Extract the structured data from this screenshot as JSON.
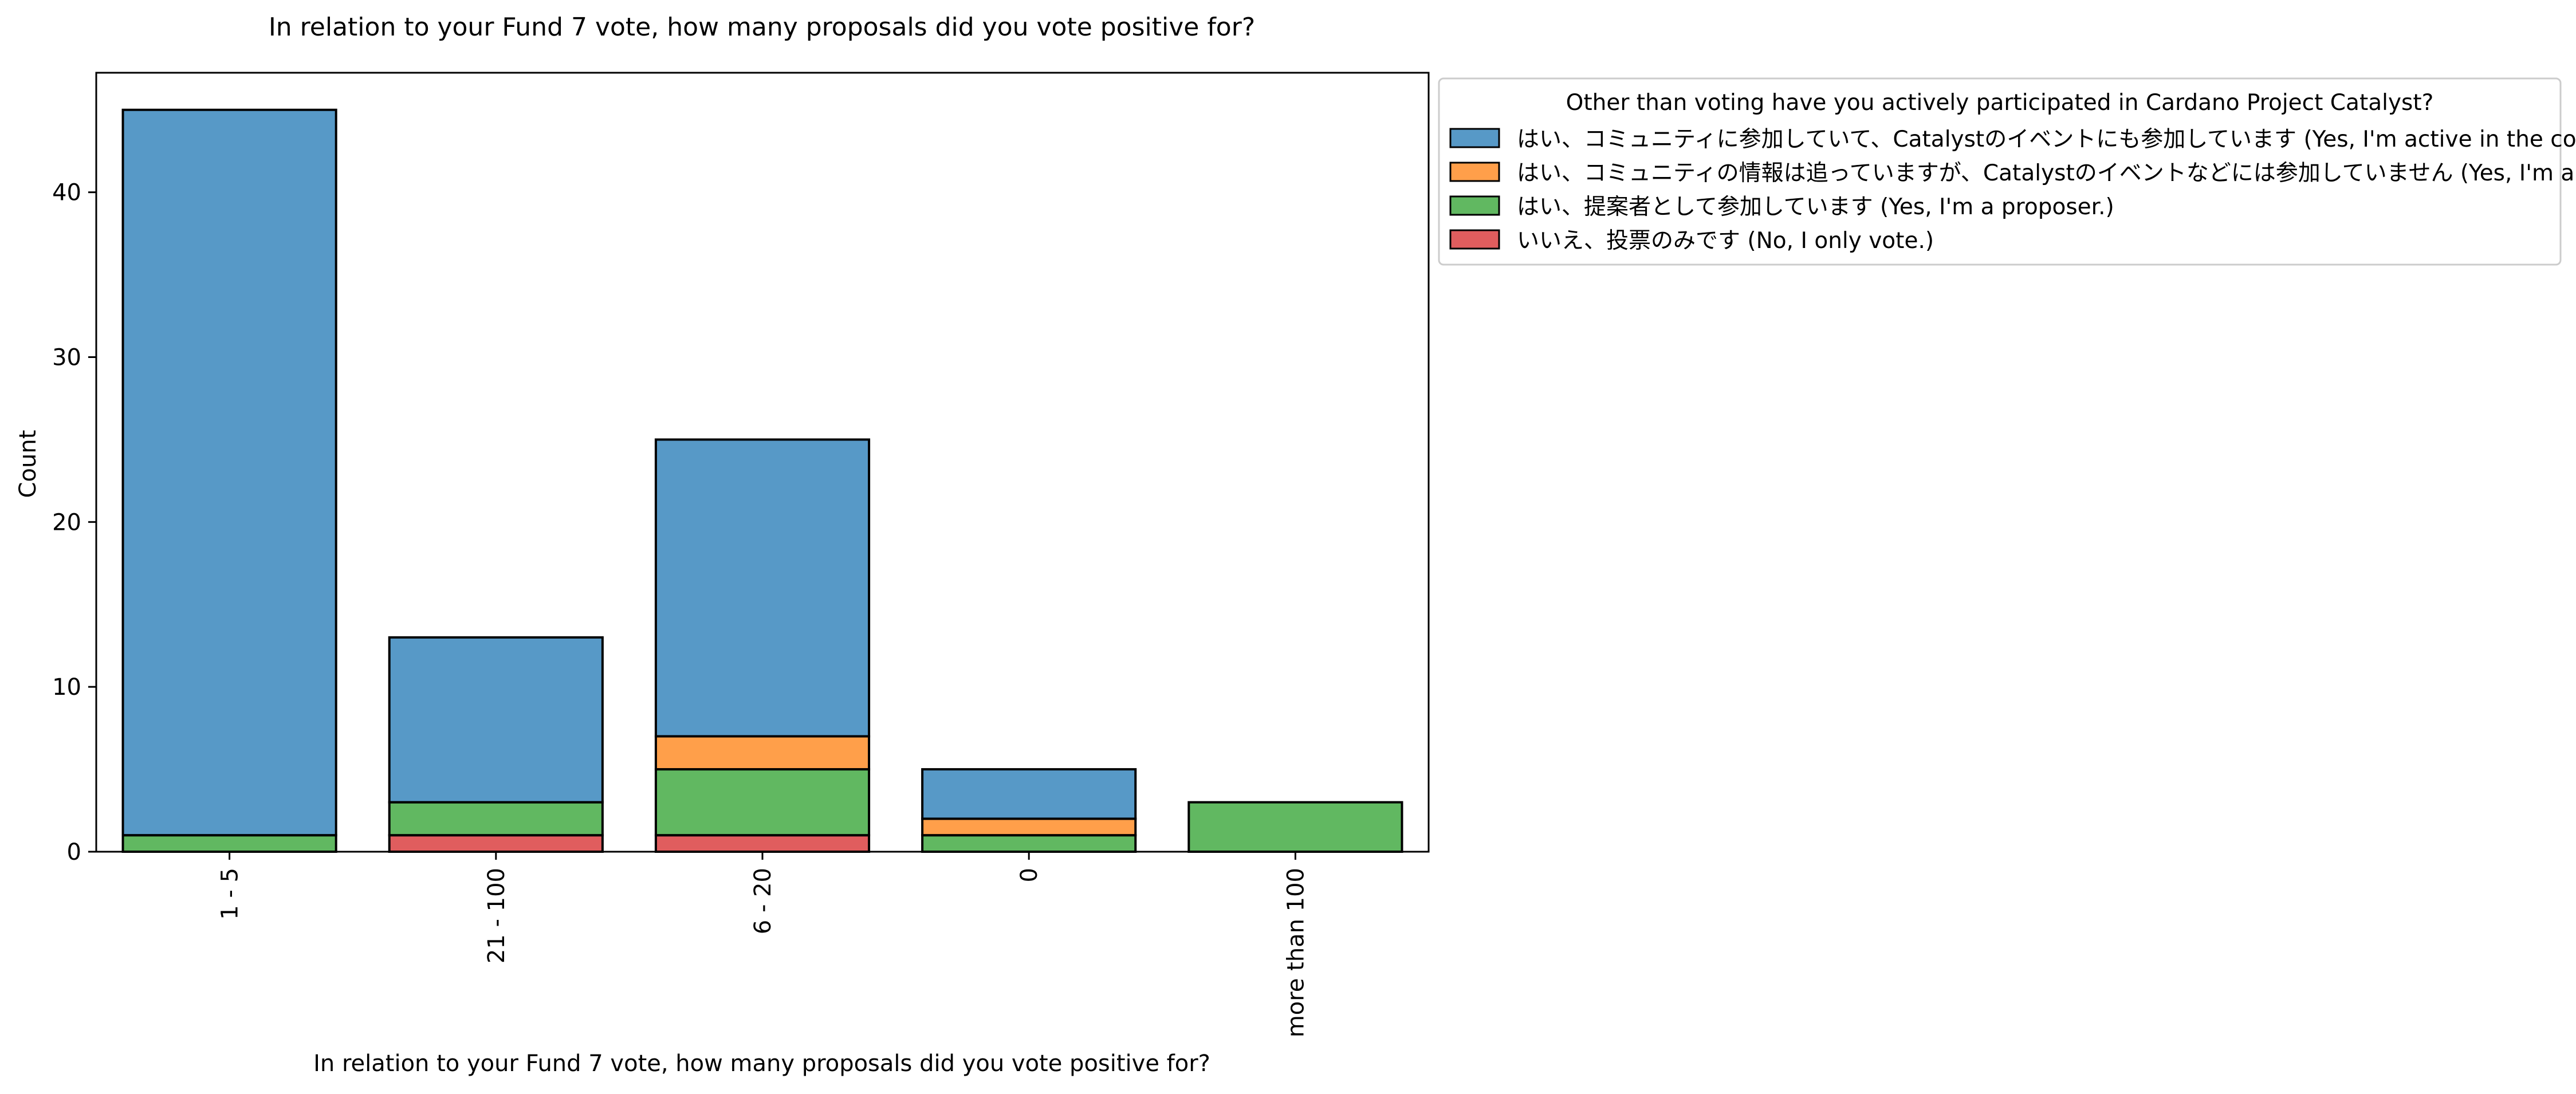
{
  "chart_data": {
    "type": "bar",
    "stacked": true,
    "title": "In relation to your Fund 7 vote, how many proposals did you vote positive for?",
    "xlabel": "In relation to your Fund 7 vote, how many proposals did you vote positive for?",
    "ylabel": "Count",
    "categories": [
      "1 - 5",
      "21 - 100",
      "6 - 20",
      "0",
      "more than 100"
    ],
    "yticks": [
      0,
      10,
      20,
      30,
      40
    ],
    "ylim": [
      0,
      47.25
    ],
    "grid": false,
    "legend": {
      "title": "Other than voting have you actively participated in Cardano Project Catalyst?",
      "placement": "outside-top-right"
    },
    "series": [
      {
        "name": "いいえ、投票のみです (No, I only vote.)",
        "color": "#d62728",
        "values": [
          0,
          1,
          1,
          0,
          0
        ]
      },
      {
        "name": "はい、提案者として参加しています (Yes, I'm a proposer.)",
        "color": "#2ca02c",
        "values": [
          1,
          2,
          4,
          1,
          3
        ]
      },
      {
        "name": "はい、コミュニティの情報は追っていますが、Catalystのイベントなどには参加していません (Yes, I'm a lurker in the community)",
        "color": "#ff7f0e",
        "values": [
          0,
          0,
          2,
          1,
          0
        ]
      },
      {
        "name": "はい、コミュニティに参加していて、Catalystのイベントにも参加しています (Yes, I'm active in the community.)",
        "color": "#1f77b4",
        "values": [
          44,
          10,
          18,
          3,
          0
        ]
      }
    ],
    "legend_order": [
      3,
      2,
      1,
      0
    ]
  }
}
